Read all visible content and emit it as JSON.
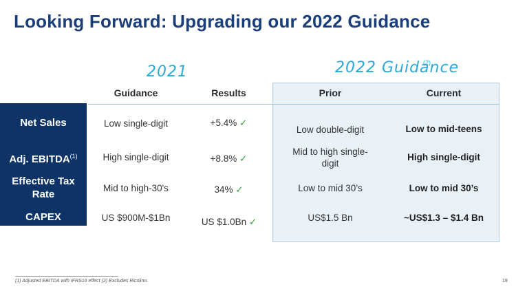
{
  "title": "Looking Forward: Upgrading our 2022 Guidance",
  "section_2021": "2021",
  "section_2022": "2022 Guidance",
  "section_2022_note": "(2)",
  "headers": {
    "guidance": "Guidance",
    "results": "Results",
    "prior": "Prior",
    "current": "Current"
  },
  "rows": [
    {
      "label": "Net Sales",
      "label_note": "",
      "guidance": "Low single-digit",
      "results": "+5.4%",
      "prior": "Low double-digit",
      "current": "Low to mid-teens"
    },
    {
      "label": "Adj. EBITDA",
      "label_note": "(1)",
      "guidance": "High single-digit",
      "results": "+8.8%",
      "prior": "Mid to high single-digit",
      "current": "High single-digit"
    },
    {
      "label": "Effective Tax Rate",
      "label_note": "",
      "guidance": "Mid to high-30's",
      "results": "34%",
      "prior": "Low to mid 30’s",
      "current": "Low to mid 30’s"
    },
    {
      "label": "CAPEX",
      "label_note": "",
      "guidance": "US $900M-$1Bn",
      "results": "US $1.0Bn",
      "prior": "US$1.5 Bn",
      "current": "~US$1.3 – $1.4 Bn"
    }
  ],
  "check_mark": "✓",
  "footnote": "(1) Adjusted EBITDA with IFRS16 effect (2) Excludes Ricolino.",
  "page_number": "19",
  "colors": {
    "navy": "#0e3366",
    "title": "#1a3e7a",
    "accent": "#2aa8d8",
    "check": "#3aa043",
    "box": "#e9f1f7"
  }
}
